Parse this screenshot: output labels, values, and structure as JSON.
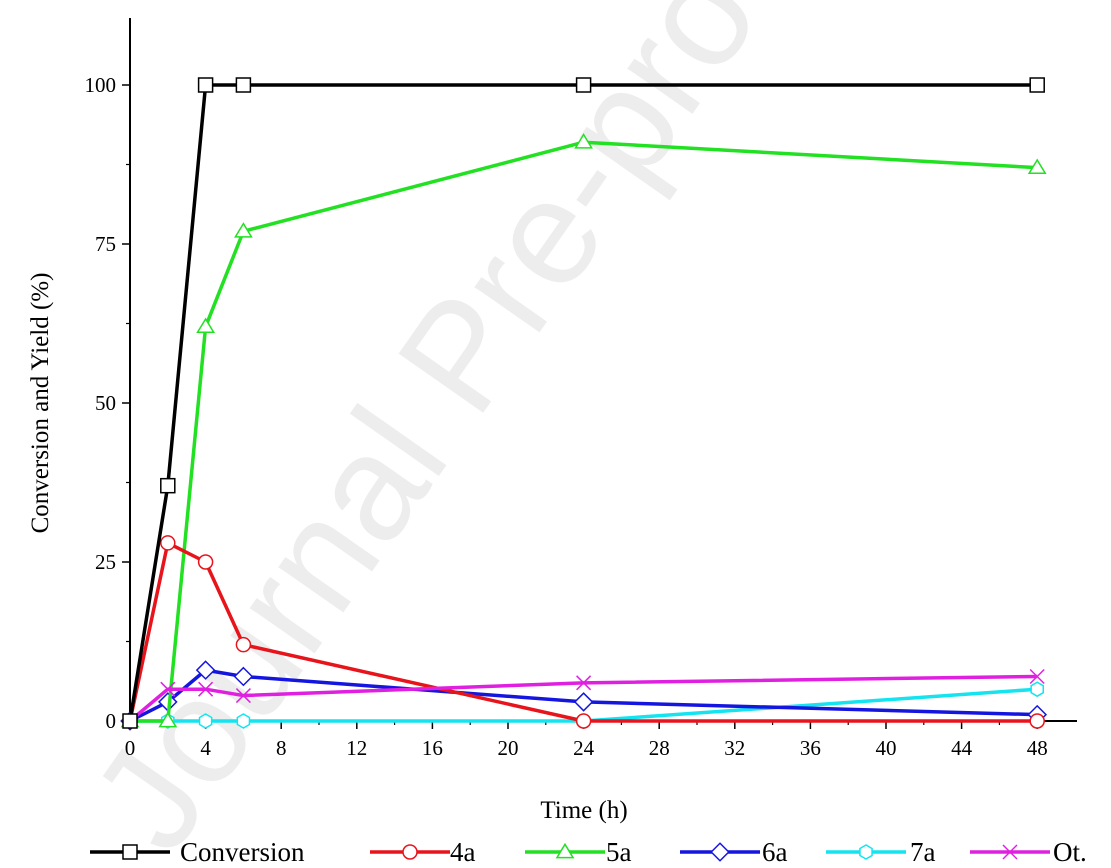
{
  "watermark_text": "Journal Pre-proof",
  "chart_data": {
    "type": "line",
    "title": "",
    "xlabel": "Time (h)",
    "ylabel": "Conversion and Yield (%)",
    "xlim": [
      0,
      50
    ],
    "ylim": [
      0,
      110
    ],
    "xticks": [
      0,
      4,
      8,
      12,
      16,
      20,
      24,
      28,
      32,
      36,
      40,
      44,
      48
    ],
    "yticks": [
      0,
      25,
      50,
      75,
      100
    ],
    "grid": false,
    "legend_position": "bottom",
    "series": [
      {
        "name": "Conversion",
        "color": "#000000",
        "marker": "square",
        "points": [
          [
            0,
            0
          ],
          [
            2,
            37
          ],
          [
            4,
            100
          ],
          [
            6,
            100
          ],
          [
            24,
            100
          ],
          [
            48,
            100
          ]
        ]
      },
      {
        "name": "4a",
        "color": "#e8141b",
        "marker": "circle",
        "points": [
          [
            0,
            0
          ],
          [
            2,
            28
          ],
          [
            4,
            25
          ],
          [
            6,
            12
          ],
          [
            24,
            0
          ],
          [
            48,
            0
          ]
        ]
      },
      {
        "name": "5a",
        "color": "#22e022",
        "marker": "triangle",
        "points": [
          [
            0,
            0
          ],
          [
            2,
            0
          ],
          [
            4,
            62
          ],
          [
            6,
            77
          ],
          [
            24,
            91
          ],
          [
            48,
            87
          ]
        ]
      },
      {
        "name": "6a",
        "color": "#1515e0",
        "marker": "diamond",
        "points": [
          [
            0,
            0
          ],
          [
            2,
            3
          ],
          [
            4,
            8
          ],
          [
            6,
            7
          ],
          [
            24,
            3
          ],
          [
            48,
            1
          ]
        ]
      },
      {
        "name": "7a",
        "color": "#14e4ef",
        "marker": "hexagon",
        "points": [
          [
            0,
            0
          ],
          [
            2,
            0
          ],
          [
            4,
            0
          ],
          [
            6,
            0
          ],
          [
            24,
            0
          ],
          [
            48,
            5
          ]
        ]
      },
      {
        "name": "Ot.",
        "color": "#e020e0",
        "marker": "x",
        "points": [
          [
            0,
            0
          ],
          [
            2,
            5
          ],
          [
            4,
            5
          ],
          [
            6,
            4
          ],
          [
            24,
            6
          ],
          [
            48,
            7
          ]
        ]
      }
    ]
  }
}
